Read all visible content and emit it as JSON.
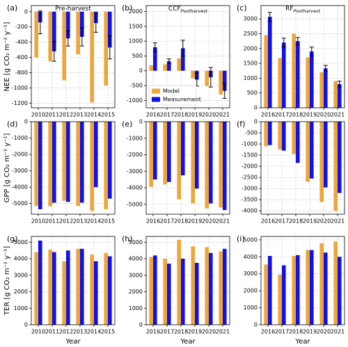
{
  "chart_data": [
    {
      "type": "bar",
      "panel_label": "(a)",
      "title": "Pre-harvest",
      "ylabel": "NEE [g CO₂ m⁻² y⁻¹]",
      "categories": [
        "2010",
        "2011",
        "2012",
        "2013",
        "2014",
        "2015"
      ],
      "series": [
        {
          "name": "Model",
          "color": "#eea63a",
          "values": [
            -600,
            -650,
            -900,
            -560,
            -1190,
            -970
          ]
        },
        {
          "name": "Measurement",
          "color": "#1212e6",
          "values": [
            -140,
            -520,
            -350,
            -330,
            -150,
            -470
          ],
          "errors": [
            150,
            130,
            100,
            120,
            120,
            150
          ]
        }
      ],
      "ylim": [
        -1260,
        80
      ],
      "yticks": [
        -1200,
        -1000,
        -800,
        -600,
        -400,
        -200,
        0
      ],
      "grid": true
    },
    {
      "type": "bar",
      "panel_label": "(b)",
      "title": "CCF",
      "title_sub": "Postharvest",
      "categories": [
        "2016",
        "2017",
        "2018",
        "2019",
        "2020",
        "2021"
      ],
      "series": [
        {
          "name": "Model",
          "color": "#eea63a",
          "values": [
            180,
            220,
            420,
            -260,
            -520,
            -800
          ]
        },
        {
          "name": "Measurement",
          "color": "#1212e6",
          "values": [
            790,
            320,
            760,
            -300,
            -220,
            -680
          ],
          "errors": [
            150,
            80,
            270,
            220,
            330,
            250
          ]
        }
      ],
      "ylim": [
        -1250,
        2200
      ],
      "yticks": [
        -1000,
        -500,
        0,
        500,
        1000,
        1500,
        2000
      ],
      "grid": true,
      "legend": "lower left"
    },
    {
      "type": "bar",
      "panel_label": "(c)",
      "title": "RF",
      "title_sub": "Postharvest",
      "categories": [
        "2016",
        "2017",
        "2018",
        "2019",
        "2020",
        "2021"
      ],
      "series": [
        {
          "name": "Model",
          "color": "#eea63a",
          "values": [
            2450,
            1680,
            2500,
            1700,
            1200,
            900
          ]
        },
        {
          "name": "Measurement",
          "color": "#1212e6",
          "values": [
            3070,
            2200,
            2250,
            1900,
            1330,
            800
          ],
          "errors": [
            150,
            150,
            120,
            150,
            100,
            100
          ]
        }
      ],
      "ylim": [
        0,
        3450
      ],
      "yticks": [
        0,
        500,
        1000,
        1500,
        2000,
        2500,
        3000
      ],
      "grid": true
    },
    {
      "type": "bar",
      "panel_label": "(d)",
      "ylabel": "GPP [g CO₂ m⁻² y⁻¹]",
      "categories": [
        "2010",
        "2011",
        "2012",
        "2013",
        "2014",
        "2015"
      ],
      "series": [
        {
          "name": "Model",
          "color": "#eea63a",
          "values": [
            -5150,
            -5170,
            -4830,
            -5150,
            -5450,
            -5350
          ]
        },
        {
          "name": "Measurement",
          "color": "#1212e6",
          "values": [
            -5350,
            -4950,
            -4900,
            -4950,
            -4000,
            -4700
          ]
        }
      ],
      "ylim": [
        -5650,
        0
      ],
      "yticks": [
        -5000,
        -4000,
        -3000,
        -2000,
        -1000,
        0
      ],
      "grid": true
    },
    {
      "type": "bar",
      "panel_label": "(e)",
      "categories": [
        "2016",
        "2017",
        "2018",
        "2019",
        "2020",
        "2021"
      ],
      "series": [
        {
          "name": "Model",
          "color": "#eea63a",
          "values": [
            -3950,
            -3800,
            -4700,
            -4950,
            -5250,
            -5200
          ]
        },
        {
          "name": "Measurement",
          "color": "#1212e6",
          "values": [
            -3500,
            -3650,
            -3250,
            -4050,
            -4950,
            -5350
          ]
        }
      ],
      "ylim": [
        -5600,
        0
      ],
      "yticks": [
        -5000,
        -4000,
        -3000,
        -2000,
        -1000,
        0
      ],
      "grid": true
    },
    {
      "type": "bar",
      "panel_label": "(f)",
      "categories": [
        "2016",
        "2017",
        "2018",
        "2019",
        "2020",
        "2021"
      ],
      "series": [
        {
          "name": "Model",
          "color": "#eea63a",
          "values": [
            -1100,
            -1250,
            -1450,
            -2700,
            -3600,
            -4000
          ]
        },
        {
          "name": "Measurement",
          "color": "#1212e6",
          "values": [
            -1050,
            -1300,
            -1850,
            -2550,
            -2950,
            -3200
          ]
        }
      ],
      "ylim": [
        -4150,
        0
      ],
      "yticks": [
        -4000,
        -3500,
        -3000,
        -2500,
        -2000,
        -1500,
        -1000,
        -500,
        0
      ],
      "grid": true
    },
    {
      "type": "bar",
      "panel_label": "(g)",
      "ylabel": "TER [g CO₂ m⁻² y⁻¹]",
      "xlabel": "Year",
      "categories": [
        "2010",
        "2011",
        "2012",
        "2013",
        "2014",
        "2015"
      ],
      "series": [
        {
          "name": "Model",
          "color": "#eea63a",
          "values": [
            4400,
            4550,
            3850,
            4600,
            4250,
            4350
          ]
        },
        {
          "name": "Measurement",
          "color": "#1212e6",
          "values": [
            5100,
            4400,
            4500,
            4600,
            3850,
            4150
          ]
        }
      ],
      "ylim": [
        0,
        5350
      ],
      "yticks": [
        0,
        1000,
        2000,
        3000,
        4000,
        5000
      ],
      "grid": true
    },
    {
      "type": "bar",
      "panel_label": "(h)",
      "xlabel": "Year",
      "categories": [
        "2016",
        "2017",
        "2018",
        "2019",
        "2020",
        "2021"
      ],
      "series": [
        {
          "name": "Model",
          "color": "#eea63a",
          "values": [
            4100,
            4000,
            5150,
            4750,
            4700,
            4450
          ]
        },
        {
          "name": "Measurement",
          "color": "#1212e6",
          "values": [
            4200,
            3700,
            4000,
            3750,
            4350,
            4600
          ]
        }
      ],
      "ylim": [
        0,
        5350
      ],
      "yticks": [
        0,
        1000,
        2000,
        3000,
        4000,
        5000
      ],
      "grid": true
    },
    {
      "type": "bar",
      "panel_label": "(i)",
      "xlabel": "Year",
      "categories": [
        "2016",
        "2017",
        "2018",
        "2019",
        "2020",
        "2021"
      ],
      "series": [
        {
          "name": "Model",
          "color": "#eea63a",
          "values": [
            3550,
            2950,
            4050,
            4400,
            4800,
            4900
          ]
        },
        {
          "name": "Measurement",
          "color": "#1212e6",
          "values": [
            4050,
            3500,
            4100,
            4400,
            4250,
            4000
          ]
        }
      ],
      "ylim": [
        0,
        5200
      ],
      "yticks": [
        0,
        1000,
        2000,
        3000,
        4000,
        5000
      ],
      "grid": true
    }
  ]
}
